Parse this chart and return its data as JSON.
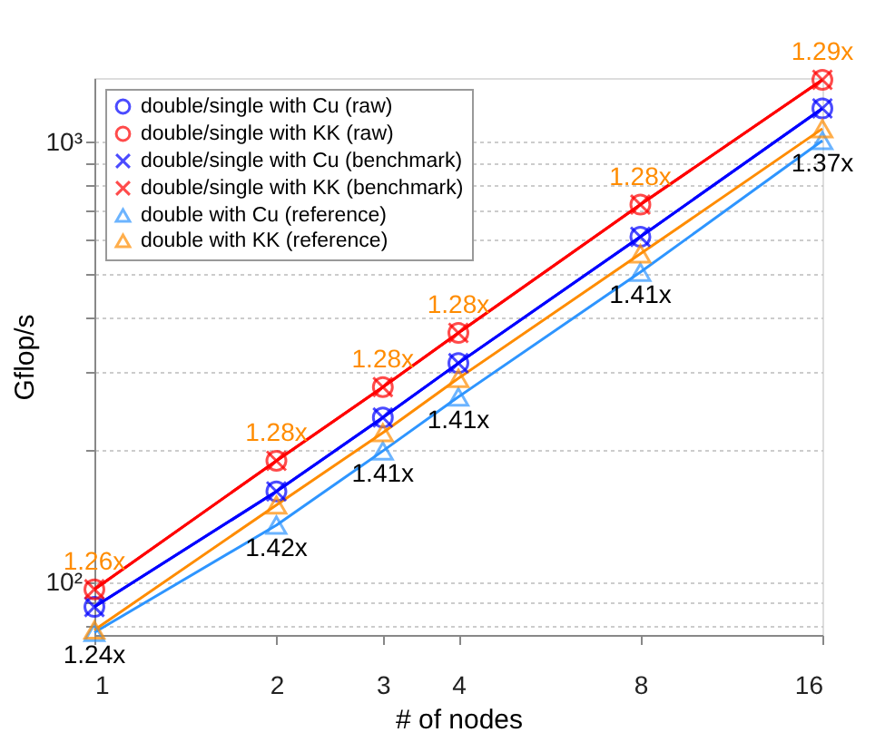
{
  "chart_data": {
    "type": "line",
    "xlabel": "# of nodes",
    "ylabel": "Gflop/s",
    "x": [
      1,
      2,
      3,
      4,
      8,
      16
    ],
    "series": [
      {
        "name": "double/single with Cu (raw)",
        "color": "#0000ff",
        "marker": "circle",
        "values": [
          88,
          161,
          237,
          315,
          610,
          1194
        ]
      },
      {
        "name": "double/single with KK (raw)",
        "color": "#ff0000",
        "marker": "circle",
        "values": [
          96.5,
          189,
          278,
          369,
          722,
          1387
        ]
      },
      {
        "name": "double/single with Cu (benchmark)",
        "color": "#0000ff",
        "marker": "cross",
        "values": [
          88,
          161,
          237,
          315,
          610,
          1194
        ]
      },
      {
        "name": "double/single with KK (benchmark)",
        "color": "#ff0000",
        "marker": "cross",
        "values": [
          96.5,
          189,
          278,
          369,
          722,
          1387
        ]
      },
      {
        "name": "double with Cu (reference)",
        "color": "#2e95ff",
        "marker": "triangle",
        "values": [
          77,
          135,
          199,
          264,
          507,
          1009
        ]
      },
      {
        "name": "double with KK (reference)",
        "color": "#ff8c00",
        "marker": "triangle",
        "values": [
          78,
          150,
          219,
          291,
          558,
          1074
        ]
      }
    ],
    "log": "xy",
    "xlim": [
      1,
      16
    ],
    "xticks": [
      1,
      2,
      3,
      4,
      8,
      16
    ],
    "ylim": [
      76,
      1400
    ],
    "yticks": [
      {
        "value": 80,
        "label": null
      },
      {
        "value": 90,
        "label": null
      },
      {
        "value": 100,
        "label": "10²"
      },
      {
        "value": 200,
        "label": null
      },
      {
        "value": 300,
        "label": null
      },
      {
        "value": 400,
        "label": null
      },
      {
        "value": 500,
        "label": null
      },
      {
        "value": 600,
        "label": null
      },
      {
        "value": 700,
        "label": null
      },
      {
        "value": 800,
        "label": null
      },
      {
        "value": 900,
        "label": null
      },
      {
        "value": 1000,
        "label": "10³"
      }
    ],
    "grid": "y",
    "legend": "top left",
    "annotations": [
      {
        "text": "1.26x",
        "x": 1,
        "y": 96.5
      },
      {
        "text": "1.28x",
        "x": 2,
        "y": 189
      },
      {
        "text": "1.28x",
        "x": 3,
        "y": 278
      },
      {
        "text": "1.28x",
        "x": 4,
        "y": 369
      },
      {
        "text": "1.28x",
        "x": 8,
        "y": 722
      },
      {
        "text": "1.29x",
        "x": 16,
        "y": 1387
      },
      {
        "text": "1.24x",
        "x": 1,
        "y": 77
      },
      {
        "text": "1.42x",
        "x": 2,
        "y": 135
      },
      {
        "text": "1.41x",
        "x": 3,
        "y": 199
      },
      {
        "text": "1.41x",
        "x": 4,
        "y": 264
      },
      {
        "text": "1.41x",
        "x": 8,
        "y": 507
      },
      {
        "text": "1.37x",
        "x": 16,
        "y": 1009
      }
    ]
  }
}
